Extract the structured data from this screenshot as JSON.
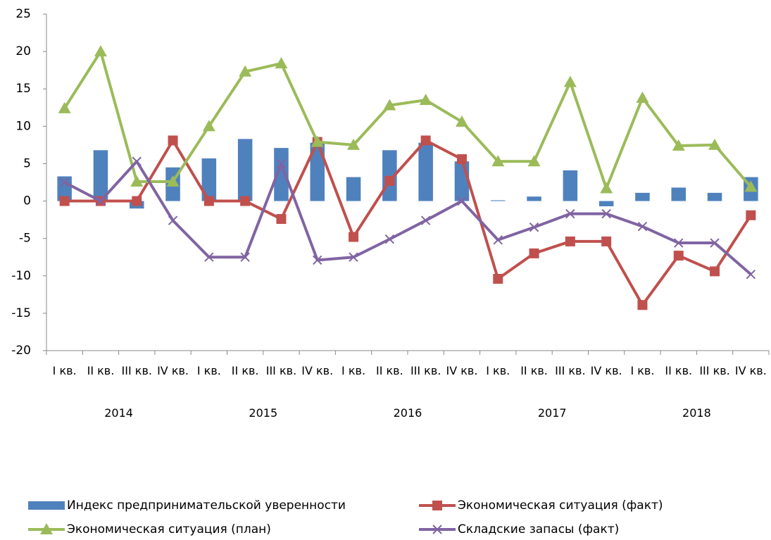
{
  "chart_data": {
    "type": "bar_line",
    "categories": [
      "I кв.",
      "II кв.",
      "III кв.",
      "IV кв.",
      "I кв.",
      "II кв.",
      "III кв.",
      "IV кв.",
      "I кв.",
      "II кв.",
      "III кв.",
      "IV кв.",
      "I кв.",
      "II кв.",
      "III кв.",
      "IV кв.",
      "I кв.",
      "II кв.",
      "III кв.",
      "IV кв."
    ],
    "groups": [
      "2014",
      "2015",
      "2016",
      "2017",
      "2018"
    ],
    "ylim": [
      -20,
      25
    ],
    "yticks": [
      -20,
      -15,
      -10,
      -5,
      0,
      5,
      10,
      15,
      20,
      25
    ],
    "series": [
      {
        "name": "Индекс предпринимательской уверенности",
        "type": "bar",
        "color": "#4f81bd",
        "values": [
          3.3,
          6.8,
          -1,
          4.5,
          5.7,
          8.3,
          7.1,
          7.8,
          3.2,
          6.8,
          7.8,
          5.3,
          0.1,
          0.6,
          4.1,
          -0.7,
          1.1,
          1.8,
          1.1,
          3.2
        ]
      },
      {
        "name": "Экономическая ситуация (факт)",
        "type": "line",
        "marker": "square",
        "color": "#c0504d",
        "values": [
          0,
          0,
          0,
          8.1,
          0,
          0,
          -2.4,
          7.9,
          -4.8,
          2.7,
          8.1,
          5.6,
          -10.4,
          -7,
          -5.4,
          -5.4,
          -13.9,
          -7.3,
          -9.4,
          -1.9
        ]
      },
      {
        "name": "Экономическая ситуация (план)",
        "type": "line",
        "marker": "triangle",
        "color": "#9bbb59",
        "values": [
          12.4,
          20,
          2.6,
          2.6,
          10,
          17.3,
          18.4,
          7.9,
          7.5,
          12.8,
          13.5,
          10.6,
          5.3,
          5.3,
          15.9,
          1.7,
          13.8,
          7.4,
          7.5,
          1.9
        ]
      },
      {
        "name": "Складские запасы (факт)",
        "type": "line",
        "marker": "x",
        "color": "#8064a2",
        "values": [
          2.5,
          0,
          5.3,
          -2.6,
          -7.5,
          -7.5,
          5,
          -7.9,
          -7.5,
          -5.1,
          -2.6,
          0,
          -5.2,
          -3.5,
          -1.7,
          -1.7,
          -3.4,
          -5.6,
          -5.6,
          -9.8
        ]
      }
    ]
  }
}
